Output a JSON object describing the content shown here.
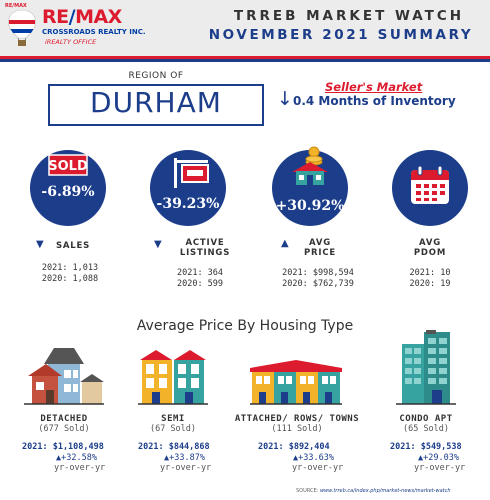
{
  "brand": {
    "small_mark": "RE/MAX",
    "name_re": "RE",
    "name_max": "MAX",
    "company": "CROSSROADS REALTY INC.",
    "office": "iREALTY OFFICE",
    "colors": {
      "red": "#dc1c2e",
      "blue": "#003da5",
      "navy": "#1c3d8a"
    }
  },
  "header": {
    "title": "TRREB MARKET WATCH",
    "subtitle": "NOVEMBER 2021 SUMMARY"
  },
  "region": {
    "label": "REGION OF",
    "name": "DURHAM"
  },
  "market": {
    "type": "Seller's Market",
    "inventory": "0.4 Months of Inventory",
    "inventory_direction": "down"
  },
  "stats": [
    {
      "icon": "sold-sign-icon",
      "value": "-6.89%",
      "direction": "down",
      "label_1": "SALES",
      "label_2": "",
      "line_2021": "2021: 1,013",
      "line_2020": "2020: 1,088",
      "badge": "SOLD"
    },
    {
      "icon": "listing-sign-icon",
      "value": "-39.23%",
      "direction": "down",
      "label_1": "ACTIVE",
      "label_2": "LISTINGS",
      "line_2021": "2021: 364",
      "line_2020": "2020: 599"
    },
    {
      "icon": "house-coins-icon",
      "value": "+30.92%",
      "direction": "up",
      "label_1": "AVG",
      "label_2": "PRICE",
      "line_2021": "2021: $998,594",
      "line_2020": "2020: $762,739"
    },
    {
      "icon": "calendar-icon",
      "value": "",
      "direction": "none",
      "label_1": "AVG",
      "label_2": "PDOM",
      "line_2021": "2021: 10",
      "line_2020": "2020: 19"
    }
  ],
  "housing": {
    "title": "Average Price By Housing Type",
    "types": [
      {
        "icon": "detached-house-icon",
        "name": "DETACHED",
        "sold": "(677 Sold)",
        "price": "2021: $1,108,498",
        "change": "+32.58%",
        "yoy": "yr-over-yr"
      },
      {
        "icon": "semi-house-icon",
        "name": "SEMI",
        "sold": "(67 Sold)",
        "price": "2021: $844,868",
        "change": "+33.87%",
        "yoy": "yr-over-yr"
      },
      {
        "icon": "townhouse-row-icon",
        "name": "ATTACHED/ ROWS/ TOWNS",
        "sold": "(111 Sold)",
        "price": "2021: $892,404",
        "change": "+33.63%",
        "yoy": "yr-over-yr"
      },
      {
        "icon": "condo-tower-icon",
        "name": "CONDO APT",
        "sold": "(65 Sold)",
        "price": "2021: $549,538",
        "change": "+29.03%",
        "yoy": "yr-over-yr"
      }
    ]
  },
  "source": {
    "label": "SOURCE:",
    "url": "www.trreb.ca/index.php/market-news/market-watch"
  }
}
